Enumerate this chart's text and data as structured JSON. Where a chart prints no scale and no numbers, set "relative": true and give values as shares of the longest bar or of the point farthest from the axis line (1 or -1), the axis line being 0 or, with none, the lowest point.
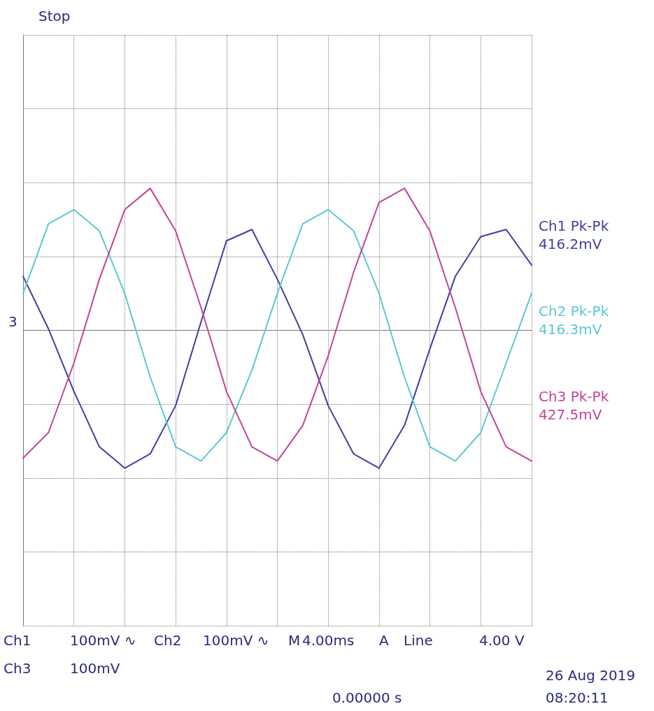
{
  "chart_data": {
    "type": "line",
    "relative": true,
    "grid": true,
    "legend": "right",
    "marker": "none",
    "line_style": "solid",
    "categories": [
      null,
      null,
      null,
      null,
      null,
      null,
      null,
      null,
      null,
      null,
      null,
      null,
      null,
      null,
      null,
      null,
      null,
      null,
      null,
      null,
      null
    ],
    "series": [
      {
        "name": "Ch1 Pk-Pk 416.2mV",
        "color": "#3f3f9e",
        "values": [
          0.38,
          0.01,
          -0.43,
          -0.82,
          -0.97,
          -0.87,
          -0.53,
          0.06,
          0.63,
          0.71,
          0.36,
          -0.03,
          -0.53,
          -0.87,
          -0.97,
          -0.67,
          -0.13,
          0.38,
          0.66,
          0.71,
          0.46
        ]
      },
      {
        "name": "Ch2 Pk-Pk 416.3mV",
        "color": "#5cc8d4",
        "values": [
          0.26,
          0.75,
          0.85,
          0.7,
          0.26,
          -0.33,
          -0.82,
          -0.92,
          -0.72,
          -0.28,
          0.26,
          0.75,
          0.85,
          0.7,
          0.26,
          -0.33,
          -0.82,
          -0.92,
          -0.72,
          -0.23,
          0.26
        ]
      },
      {
        "name": "Ch3 Pk-Pk 427.5mV",
        "color": "#c2449a",
        "values": [
          -0.9,
          -0.72,
          -0.23,
          0.36,
          0.85,
          1,
          0.7,
          0.16,
          -0.43,
          -0.82,
          -0.92,
          -0.67,
          -0.18,
          0.41,
          0.9,
          1,
          0.7,
          0.16,
          -0.43,
          -0.82,
          -0.92
        ]
      }
    ],
    "annotations": [
      "Stop",
      "3",
      "Ch1",
      "100mV ∿",
      "Ch2",
      "100mV ∿",
      "M",
      "4.00ms",
      "A",
      "Line",
      "4.00 V",
      "Ch3",
      "100mV",
      "0.00000 s",
      "26 Aug 2019",
      "08:20:11"
    ]
  }
}
